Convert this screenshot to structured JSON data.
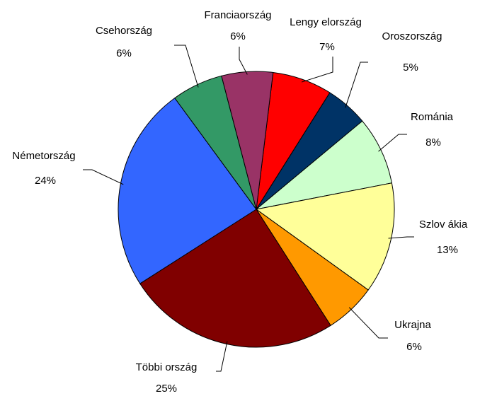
{
  "chart_data": {
    "type": "pie",
    "categories": [
      "Lengy elország",
      "Oroszország",
      "Románia",
      "Szlov ákia",
      "Ukrajna",
      "Többi ország",
      "Németország",
      "Csehország",
      "Franciaország"
    ],
    "values": [
      7,
      5,
      8,
      13,
      6,
      25,
      24,
      6,
      6
    ],
    "value_labels": [
      "7%",
      "5%",
      "8%",
      "13%",
      "6%",
      "25%",
      "24%",
      "6%",
      "6%"
    ],
    "colors": [
      "#ff0000",
      "#003366",
      "#ccffcc",
      "#ffff99",
      "#ff9900",
      "#800000",
      "#3366ff",
      "#339966",
      "#993366"
    ]
  }
}
